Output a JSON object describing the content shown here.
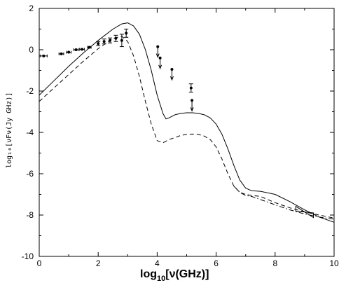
{
  "chart_data": {
    "type": "line",
    "xlabel_main": "log",
    "xlabel_sub": "10",
    "xlabel_rest": "[ν(GHz)]",
    "ylabel": "log₁₀[νFν(Jy GHz)]",
    "xlim": [
      0,
      10
    ],
    "ylim": [
      -10,
      2
    ],
    "xticks": [
      "0",
      "2",
      "4",
      "6",
      "8",
      "10"
    ],
    "xtick_values": [
      0,
      2,
      4,
      6,
      8,
      10
    ],
    "yticks": [
      "2",
      "0",
      "-2",
      "-4",
      "-6",
      "-8",
      "-10"
    ],
    "ytick_values": [
      2,
      0,
      -2,
      -4,
      -6,
      -8,
      -10
    ],
    "grid": false,
    "series": [
      {
        "style": "solid",
        "x": [
          0,
          0.5,
          1.0,
          1.5,
          2.0,
          2.5,
          2.8,
          3.0,
          3.2,
          3.4,
          3.6,
          3.8,
          4.0,
          4.2,
          4.3,
          4.4,
          4.6,
          4.8,
          5.0,
          5.2,
          5.4,
          5.6,
          5.8,
          6.0,
          6.2,
          6.4,
          6.6,
          6.8,
          7.0,
          7.2,
          7.5,
          8.0,
          8.5,
          9.0,
          9.5,
          10.0
        ],
        "y": [
          -2.2,
          -1.5,
          -0.8,
          -0.15,
          0.45,
          1.0,
          1.25,
          1.3,
          1.15,
          0.75,
          0.0,
          -1.0,
          -2.2,
          -3.1,
          -3.35,
          -3.3,
          -3.15,
          -3.08,
          -3.05,
          -3.05,
          -3.08,
          -3.15,
          -3.3,
          -3.6,
          -4.1,
          -4.8,
          -5.6,
          -6.3,
          -6.7,
          -6.82,
          -6.85,
          -7.0,
          -7.35,
          -7.75,
          -8.1,
          -8.35
        ]
      },
      {
        "style": "dashed",
        "x": [
          0,
          0.5,
          1.0,
          1.5,
          2.0,
          2.5,
          2.8,
          3.0,
          3.2,
          3.4,
          3.6,
          3.8,
          4.0,
          4.2,
          4.4,
          4.6,
          4.8,
          5.0,
          5.2,
          5.4,
          5.6,
          5.8,
          6.0,
          6.2,
          6.4,
          6.6,
          6.8,
          7.0,
          7.2,
          7.5,
          8.0,
          8.5,
          9.0,
          9.5,
          10.0
        ],
        "y": [
          -2.5,
          -1.85,
          -1.2,
          -0.55,
          0.05,
          0.55,
          0.65,
          0.4,
          -0.3,
          -1.3,
          -2.5,
          -3.6,
          -4.4,
          -4.5,
          -4.35,
          -4.25,
          -4.15,
          -4.1,
          -4.08,
          -4.1,
          -4.18,
          -4.35,
          -4.7,
          -5.3,
          -6.0,
          -6.6,
          -6.9,
          -7.0,
          -7.05,
          -7.1,
          -7.4,
          -7.65,
          -7.85,
          -8.0,
          -8.15
        ]
      },
      {
        "style": "dashdot",
        "x": [
          6.6,
          6.8,
          7.0,
          7.2,
          7.5,
          8.0,
          8.5,
          9.0,
          9.5,
          10.0
        ],
        "y": [
          -6.6,
          -6.9,
          -7.05,
          -7.1,
          -7.25,
          -7.5,
          -7.75,
          -7.95,
          -8.1,
          -8.2
        ]
      }
    ],
    "points_with_errors": [
      {
        "x": 0.15,
        "y": -0.3,
        "xerr": 0.12
      },
      {
        "x": 0.75,
        "y": -0.2,
        "xerr": 0.08
      },
      {
        "x": 1.0,
        "y": -0.12,
        "xerr": 0.08
      },
      {
        "x": 1.25,
        "y": 0.0,
        "xerr": 0.08
      },
      {
        "x": 1.45,
        "y": 0.02,
        "xerr": 0.08
      },
      {
        "x": 1.7,
        "y": 0.12,
        "xerr": 0.06
      },
      {
        "x": 2.0,
        "y": 0.3,
        "yerr": 0.1
      },
      {
        "x": 2.2,
        "y": 0.4,
        "yerr": 0.12
      },
      {
        "x": 2.4,
        "y": 0.45,
        "yerr": 0.12
      },
      {
        "x": 2.6,
        "y": 0.55,
        "yerr": 0.15
      },
      {
        "x": 2.8,
        "y": 0.45,
        "yerr": 0.3
      },
      {
        "x": 2.95,
        "y": 0.8,
        "yerr": 0.2
      },
      {
        "x": 5.15,
        "y": -1.85,
        "yerr": 0.2
      }
    ],
    "upper_limits": [
      {
        "x": 4.02,
        "y": 0.15
      },
      {
        "x": 4.1,
        "y": -0.4
      },
      {
        "x": 4.5,
        "y": -0.95
      },
      {
        "x": 5.18,
        "y": -2.45
      }
    ],
    "bowtie": {
      "x": [
        8.7,
        9.3
      ],
      "center": [
        9.0,
        -7.85
      ],
      "spread": 0.35
    }
  }
}
